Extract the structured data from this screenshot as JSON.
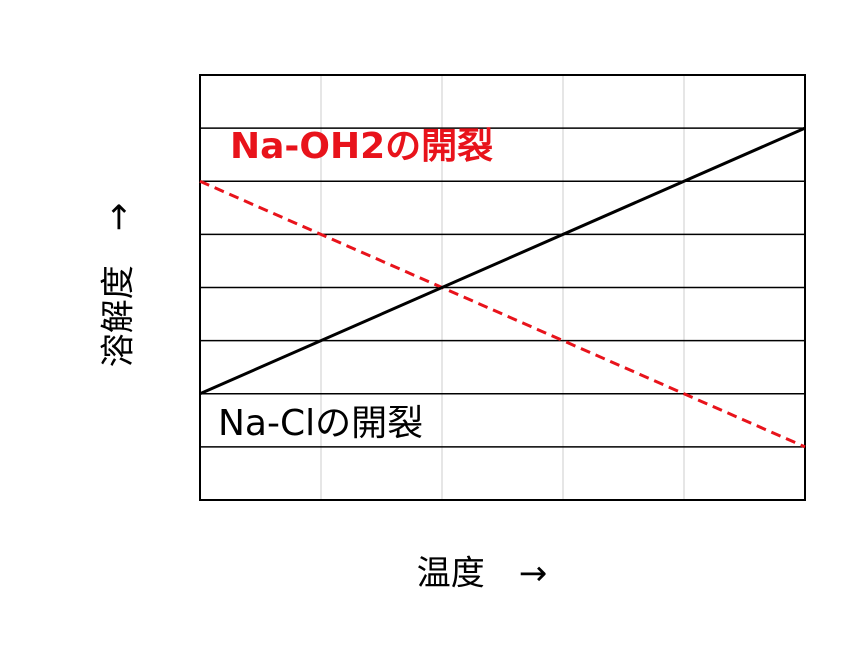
{
  "chart_data": {
    "type": "line",
    "xlabel": "温度　→",
    "ylabel": "溶解度　→",
    "x": [
      0,
      5
    ],
    "xlim": [
      0,
      5
    ],
    "ylim": [
      0,
      8
    ],
    "xticks": [
      0,
      1,
      2,
      3,
      4,
      5
    ],
    "yticks": [
      0,
      1,
      2,
      3,
      4,
      5,
      6,
      7,
      8
    ],
    "grid": true,
    "series": [
      {
        "name": "Na-OH2の開裂",
        "color": "#e8131b",
        "linestyle": "dashed",
        "values": [
          6,
          1
        ]
      },
      {
        "name": "Na-Clの開裂",
        "color": "#000000",
        "linestyle": "solid",
        "values": [
          2,
          7
        ]
      }
    ]
  }
}
